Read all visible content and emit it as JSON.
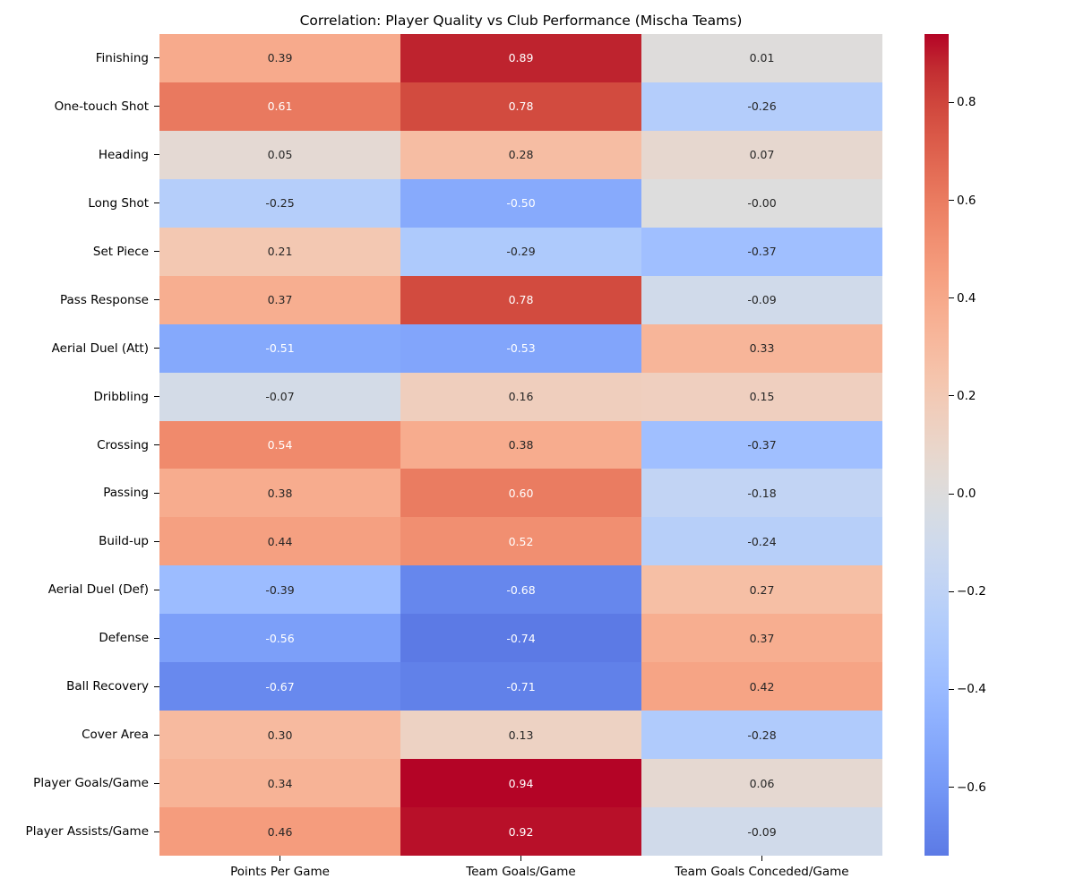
{
  "chart_data": {
    "type": "heatmap",
    "title": "Correlation: Player Quality vs Club Performance (Mischa Teams)",
    "x_tick_labels": [
      "Points Per Game",
      "Team Goals/Game",
      "Team Goals Conceded/Game"
    ],
    "y_tick_labels": [
      "Finishing",
      "One-touch Shot",
      "Heading",
      "Long Shot",
      "Set Piece",
      "Pass Response",
      "Aerial Duel (Att)",
      "Dribbling",
      "Crossing",
      "Passing",
      "Build-up",
      "Aerial Duel (Def)",
      "Defense",
      "Ball Recovery",
      "Cover Area",
      "Player Goals/Game",
      "Player Assists/Game"
    ],
    "values": [
      [
        0.39,
        0.89,
        0.01
      ],
      [
        0.61,
        0.78,
        -0.26
      ],
      [
        0.05,
        0.28,
        0.07
      ],
      [
        -0.25,
        -0.5,
        -0.0
      ],
      [
        0.21,
        -0.29,
        -0.37
      ],
      [
        0.37,
        0.78,
        -0.09
      ],
      [
        -0.51,
        -0.53,
        0.33
      ],
      [
        -0.07,
        0.16,
        0.15
      ],
      [
        0.54,
        0.38,
        -0.37
      ],
      [
        0.38,
        0.6,
        -0.18
      ],
      [
        0.44,
        0.52,
        -0.24
      ],
      [
        -0.39,
        -0.68,
        0.27
      ],
      [
        -0.56,
        -0.74,
        0.37
      ],
      [
        -0.67,
        -0.71,
        0.42
      ],
      [
        0.3,
        0.13,
        -0.28
      ],
      [
        0.34,
        0.94,
        0.06
      ],
      [
        0.46,
        0.92,
        -0.09
      ]
    ],
    "cell_labels": [
      [
        "0.39",
        "0.89",
        "0.01"
      ],
      [
        "0.61",
        "0.78",
        "-0.26"
      ],
      [
        "0.05",
        "0.28",
        "0.07"
      ],
      [
        "-0.25",
        "-0.50",
        "-0.00"
      ],
      [
        "0.21",
        "-0.29",
        "-0.37"
      ],
      [
        "0.37",
        "0.78",
        "-0.09"
      ],
      [
        "-0.51",
        "-0.53",
        "0.33"
      ],
      [
        "-0.07",
        "0.16",
        "0.15"
      ],
      [
        "0.54",
        "0.38",
        "-0.37"
      ],
      [
        "0.38",
        "0.60",
        "-0.18"
      ],
      [
        "0.44",
        "0.52",
        "-0.24"
      ],
      [
        "-0.39",
        "-0.68",
        "0.27"
      ],
      [
        "-0.56",
        "-0.74",
        "0.37"
      ],
      [
        "-0.67",
        "-0.71",
        "0.42"
      ],
      [
        "0.30",
        "0.13",
        "-0.28"
      ],
      [
        "0.34",
        "0.94",
        "0.06"
      ],
      [
        "0.46",
        "0.92",
        "-0.09"
      ]
    ],
    "colormap": "coolwarm",
    "center": 0,
    "vmin": -0.74,
    "vmax": 0.94,
    "annotations": true,
    "grid": false,
    "colorbar_position": "right",
    "colorbar_tick_values": [
      0.8,
      0.6,
      0.4,
      0.2,
      0.0,
      -0.2,
      -0.4,
      -0.6
    ],
    "colorbar_tick_labels": [
      "0.8",
      "0.6",
      "0.4",
      "0.2",
      "0.0",
      "−0.2",
      "−0.4",
      "−0.6"
    ],
    "annotation_text_colors": {
      "dark": "#262626",
      "light": "#ffffff"
    }
  }
}
